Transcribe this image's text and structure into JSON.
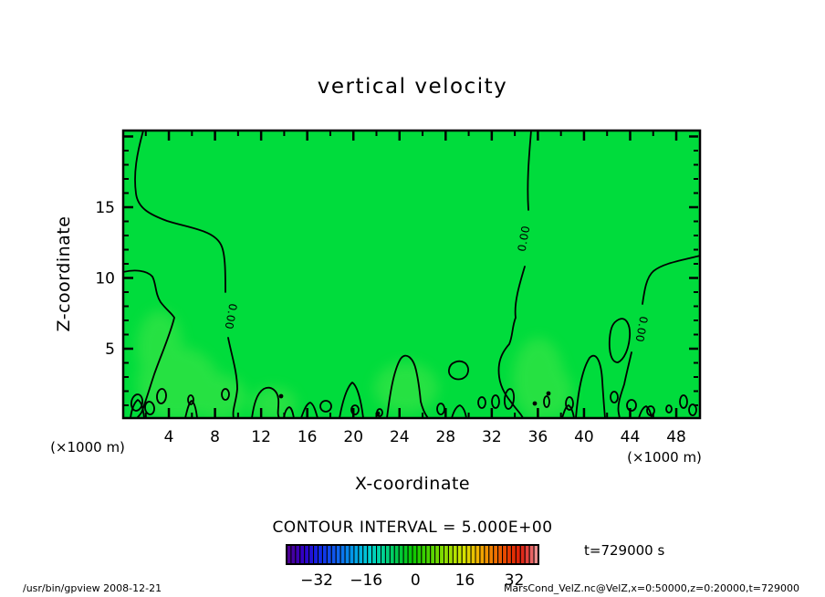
{
  "title": "vertical velocity",
  "axes": {
    "x": {
      "label": "X-coordinate",
      "unit_note": "(×1000 m)",
      "ticks": [
        4,
        8,
        12,
        16,
        20,
        24,
        28,
        32,
        36,
        40,
        44,
        48
      ],
      "range": [
        0,
        50
      ]
    },
    "z": {
      "label": "Z-coordinate",
      "unit_note": "(×1000 m)",
      "ticks": [
        5,
        10,
        15
      ],
      "range": [
        0,
        20
      ]
    }
  },
  "contours": {
    "zero_label": "0.00",
    "interval_label": "CONTOUR INTERVAL = 5.000E+00"
  },
  "colorbar": {
    "tick_values": [
      -32,
      -16,
      0,
      16,
      32
    ],
    "segment_count": 56,
    "stops": [
      [
        0.0,
        "#50008C"
      ],
      [
        0.07,
        "#3000C8"
      ],
      [
        0.13,
        "#1028E6"
      ],
      [
        0.2,
        "#1060F0"
      ],
      [
        0.27,
        "#00A0E8"
      ],
      [
        0.33,
        "#00D2D2"
      ],
      [
        0.39,
        "#00D28C"
      ],
      [
        0.45,
        "#00C83C"
      ],
      [
        0.5,
        "#0AC800"
      ],
      [
        0.56,
        "#46D200"
      ],
      [
        0.63,
        "#8CDC00"
      ],
      [
        0.7,
        "#D2E600"
      ],
      [
        0.76,
        "#F0B400"
      ],
      [
        0.82,
        "#F07800"
      ],
      [
        0.88,
        "#E63C00"
      ],
      [
        0.93,
        "#DC1E0A"
      ],
      [
        0.965,
        "#E65050"
      ],
      [
        1.0,
        "#F0A0A0"
      ]
    ]
  },
  "annotations": {
    "time": "t=729000 s"
  },
  "footer": {
    "left": "/usr/bin/gpview  2008-12-21",
    "right": "MarsCond_VelZ.nc@VelZ,x=0:50000,z=0:20000,t=729000"
  },
  "colors": {
    "field_fill": "#00DC3C",
    "field_patch": "#55E84B",
    "contour_line": "#000000",
    "frame": "#000000",
    "footer_left_text": "#808080"
  },
  "chart_data": {
    "type": "heatmap",
    "title": "vertical velocity",
    "xlabel": "X-coordinate (×1000 m)",
    "ylabel": "Z-coordinate (×1000 m)",
    "xlim": [
      0,
      50
    ],
    "ylim": [
      0,
      20
    ],
    "x_ticks": [
      4,
      8,
      12,
      16,
      20,
      24,
      28,
      32,
      36,
      40,
      44,
      48
    ],
    "y_ticks": [
      5,
      10,
      15
    ],
    "contour_interval": 5.0,
    "contour_levels_labeled": [
      0.0
    ],
    "colorbar_ticks": [
      -32,
      -16,
      0,
      16,
      32
    ],
    "colorbar_range_est": [
      -42,
      40
    ],
    "time_annotation": "t=729000 s",
    "field_summary": "Vertical velocity is approximately 0 over nearly the whole x=0..50, z=0..20 domain (uniform green shade near value 0). The 0.00 contour winds through the domain: one branch descends from the top boundary near x=3 curving right to x=10 around z=5-8 and down to the surface; a nearly vertical 0.00 branch sits near x=35 from top to bottom; another branch enters the right boundary near z=12 and descends near x=45 to the surface; many small closed 0.00 contour cells lie along the bottom boundary z<3 across all x.",
    "legend_position": "bottom colorbar",
    "grid": false
  }
}
